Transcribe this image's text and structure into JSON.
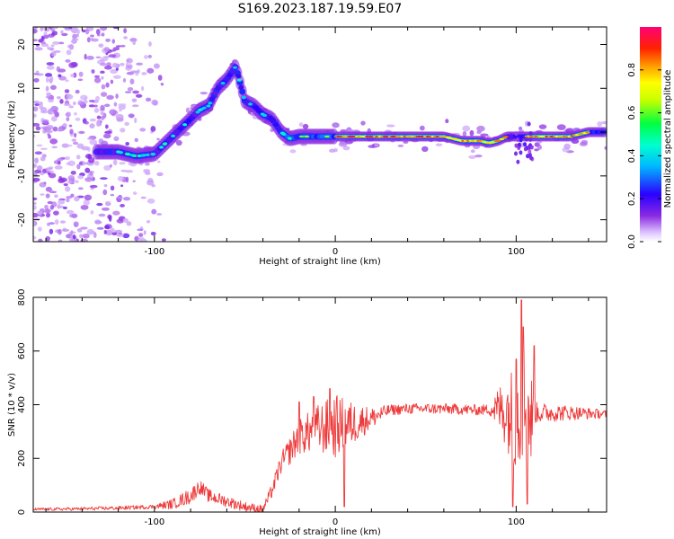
{
  "title": "S169.2023.187.19.59.E07",
  "colors": {
    "snr_line": "#ee3a3a",
    "ridge_violet": "#6a0dff",
    "scatter_light": "#c9a8f5"
  },
  "chart_data": [
    {
      "type": "heatmap",
      "name": "spectrogram",
      "xlabel": "Height of straight line (km)",
      "ylabel": "Frequency (Hz)",
      "xlim": [
        -167,
        150
      ],
      "ylim": [
        -25,
        24
      ],
      "x_ticks": [
        -100,
        0,
        100
      ],
      "y_ticks": [
        -20,
        -10,
        0,
        10,
        20
      ],
      "ridge": {
        "x": [
          -130,
          -120,
          -110,
          -100,
          -95,
          -90,
          -85,
          -80,
          -75,
          -70,
          -65,
          -60,
          -55,
          -50,
          -45,
          -40,
          -35,
          -30,
          -25,
          -20,
          -10,
          0,
          10,
          20,
          30,
          40,
          50,
          60,
          70,
          80,
          85,
          90,
          95,
          100,
          105,
          110,
          120,
          130,
          140,
          150
        ],
        "y": [
          -4.5,
          -4.5,
          -5.5,
          -5,
          -3,
          -1,
          1,
          3,
          5,
          6,
          10,
          12,
          15,
          7,
          6,
          4,
          3,
          0,
          -1.5,
          -1,
          -1,
          -1,
          -1,
          -1,
          -1,
          -1,
          -1,
          -1,
          -2,
          -2,
          -2.5,
          -2,
          -1,
          -1,
          -1,
          -1,
          -1,
          -1,
          0,
          0
        ]
      },
      "colorbar": {
        "label": "Normalized spectral amplitude",
        "range": [
          0,
          1
        ],
        "ticks": [
          0.0,
          0.2,
          0.4,
          0.6,
          0.8
        ],
        "tick_labels": [
          "0.0",
          "0.2",
          "0.4",
          "0.6",
          "0.8"
        ]
      }
    },
    {
      "type": "line",
      "name": "snr",
      "xlabel": "Height of straight line (km)",
      "ylabel": "SNR (10 * v/v)",
      "xlim": [
        -167,
        150
      ],
      "ylim": [
        0,
        800
      ],
      "x_ticks": [
        -100,
        0,
        100
      ],
      "y_ticks": [
        0,
        200,
        400,
        600,
        800
      ],
      "series": [
        {
          "envelope_x": [
            -167,
            -140,
            -120,
            -100,
            -90,
            -80,
            -75,
            -70,
            -60,
            -50,
            -40,
            -35,
            -30,
            -20,
            -10,
            0,
            10,
            20,
            30,
            40,
            60,
            80,
            90,
            95,
            100,
            105,
            108,
            110,
            115,
            130,
            150
          ],
          "envelope_y": [
            10,
            12,
            15,
            20,
            30,
            60,
            95,
            60,
            40,
            20,
            10,
            80,
            180,
            280,
            310,
            320,
            330,
            350,
            380,
            385,
            385,
            380,
            385,
            380,
            350,
            400,
            350,
            370,
            370,
            370,
            365
          ],
          "noise_x": [
            -167,
            -100,
            -80,
            -70,
            -40,
            -30,
            -10,
            0,
            20,
            30,
            85,
            90,
            95,
            100,
            103,
            105,
            108,
            110,
            150
          ],
          "noise_y": [
            5,
            8,
            30,
            25,
            15,
            40,
            90,
            120,
            40,
            20,
            20,
            80,
            150,
            200,
            220,
            250,
            200,
            40,
            15
          ],
          "spikes": [
            {
              "x": -20,
              "y": 410
            },
            {
              "x": -12,
              "y": 430
            },
            {
              "x": -3,
              "y": 460
            },
            {
              "x": 5,
              "y": 20
            },
            {
              "x": 100,
              "y": 570
            },
            {
              "x": 103,
              "y": 790
            },
            {
              "x": 104,
              "y": 690
            },
            {
              "x": 106,
              "y": 30
            },
            {
              "x": 98,
              "y": 20
            },
            {
              "x": 110,
              "y": 620
            }
          ]
        }
      ]
    }
  ]
}
